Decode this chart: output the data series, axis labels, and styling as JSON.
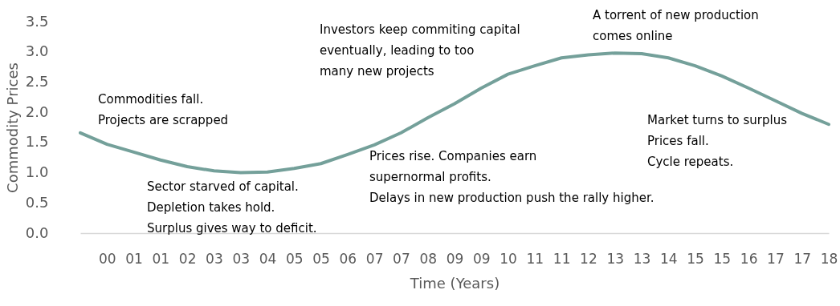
{
  "chart_data": {
    "type": "line",
    "xlabel": "Time (Years)",
    "ylabel": "Commodity Prices",
    "categories": [
      null,
      "00",
      "01",
      "01",
      "02",
      "03",
      "03",
      "04",
      "05",
      "05",
      "06",
      "07",
      "07",
      "08",
      "09",
      "09",
      "10",
      "11",
      "11",
      "12",
      "13",
      "13",
      "14",
      "15",
      "15",
      "16",
      "17",
      "17",
      "18"
    ],
    "series": [
      {
        "color": "#74a09a",
        "values": [
          1.66,
          1.47,
          1.34,
          1.21,
          1.1,
          1.03,
          1.0,
          1.01,
          1.07,
          1.15,
          1.3,
          1.46,
          1.66,
          1.91,
          2.14,
          2.4,
          2.63,
          2.77,
          2.9,
          2.95,
          2.98,
          2.97,
          2.9,
          2.77,
          2.6,
          2.4,
          2.19,
          1.98,
          1.8
        ]
      }
    ],
    "ylim": [
      0,
      3.5
    ],
    "yticks": [
      {
        "value": 0,
        "label": "0.0"
      },
      0.5,
      {
        "value": 1,
        "label": "1.0"
      },
      1.5,
      {
        "value": 2,
        "label": "2.0"
      },
      2.5,
      {
        "value": 3,
        "label": "3.0"
      },
      3.5
    ],
    "grid": false,
    "marker": "none",
    "line_style": "solid",
    "annotations": [
      "Commodities fall.\nProjects are scrapped",
      "Sector starved of capital.\nDepletion takes hold.\nSurplus gives way to deficit.",
      "Investors keep commiting capital\neventually, leading to too\nmany new projects",
      "Prices rise. Companies earn\nsupernormal profits.\nDelays in new production push the rally higher.",
      "A torrent of new production\ncomes online",
      "Market turns to surplus\nPrices fall.\nCycle repeats."
    ]
  }
}
